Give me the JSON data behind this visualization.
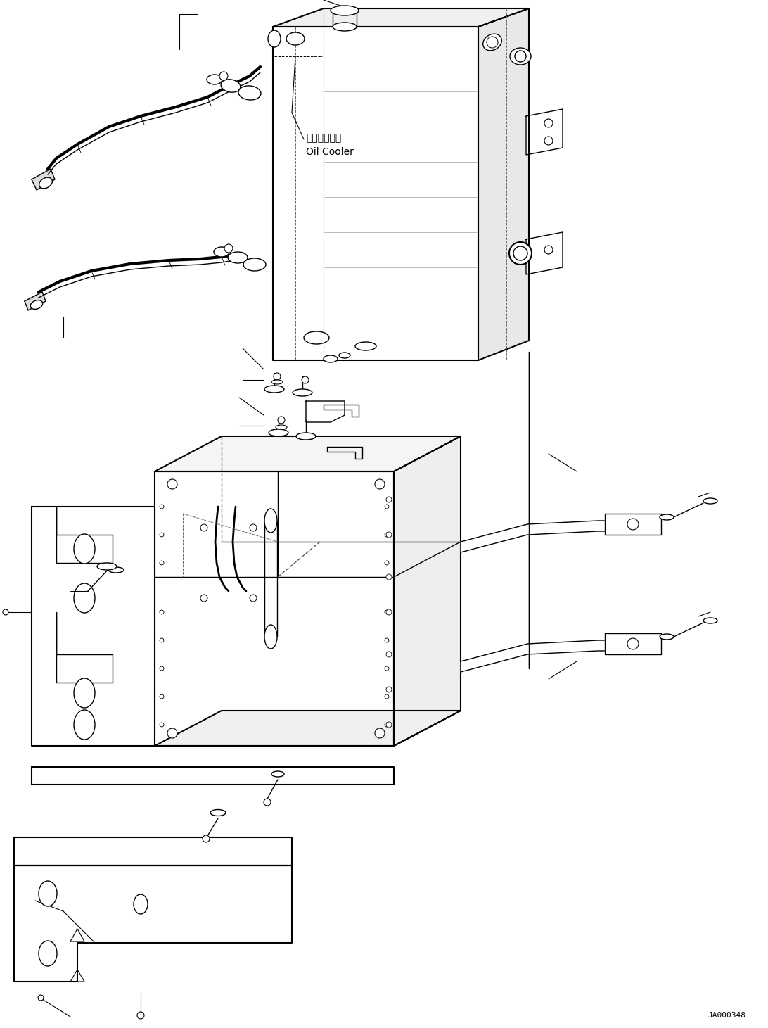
{
  "bg_color": "#ffffff",
  "line_color": "#000000",
  "lw": 1.0,
  "lw_thick": 1.5,
  "lw_thin": 0.6,
  "label_oil_cooler_jp": "オイルクーラ",
  "label_oil_cooler_en": "Oil Cooler",
  "watermark": "JA000348",
  "fig_width": 10.92,
  "fig_height": 14.61,
  "dpi": 100
}
